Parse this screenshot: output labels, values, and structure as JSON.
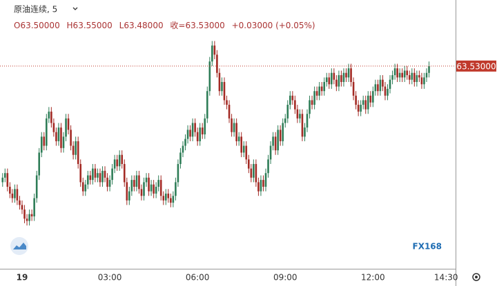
{
  "chart_data": {
    "type": "candlestick",
    "title": "原油连续, 5",
    "ohlc_text": [
      "O63.50000",
      "H63.55000",
      "L63.48000",
      "收=63.53000",
      "+0.03000 (+0.05%)"
    ],
    "price_line": {
      "value": 63.53,
      "label": "63.53000"
    },
    "logo": "FX168",
    "up_color": "#2e7d57",
    "down_color": "#a32a24",
    "ylim": [
      62.64,
      63.82
    ],
    "categories": [
      null,
      null,
      null,
      null,
      null,
      null,
      null,
      null,
      "19",
      null,
      null,
      null,
      null,
      null,
      null,
      null,
      null,
      null,
      null,
      null,
      null,
      null,
      null,
      null,
      null,
      null,
      null,
      null,
      null,
      null,
      null,
      null,
      null,
      null,
      null,
      null,
      null,
      null,
      null,
      null,
      null,
      null,
      null,
      null,
      "03:00",
      null,
      null,
      null,
      null,
      null,
      null,
      null,
      null,
      null,
      null,
      null,
      null,
      null,
      null,
      null,
      null,
      null,
      null,
      null,
      null,
      null,
      null,
      null,
      null,
      null,
      null,
      null,
      null,
      null,
      null,
      null,
      null,
      null,
      null,
      null,
      "06:00",
      null,
      null,
      null,
      null,
      null,
      null,
      null,
      null,
      null,
      null,
      null,
      null,
      null,
      null,
      null,
      null,
      null,
      null,
      null,
      null,
      null,
      null,
      null,
      null,
      null,
      null,
      null,
      null,
      null,
      null,
      null,
      null,
      null,
      null,
      null,
      "09:00",
      null,
      null,
      null,
      null,
      null,
      null,
      null,
      null,
      null,
      null,
      null,
      null,
      null,
      null,
      null,
      null,
      null,
      null,
      null,
      null,
      null,
      null,
      null,
      null,
      null,
      null,
      null,
      null,
      null,
      null,
      null,
      null,
      null,
      null,
      null,
      "12:00",
      null,
      null,
      null,
      null,
      null,
      null,
      null,
      null,
      null,
      null,
      null,
      null,
      null,
      null,
      null,
      null,
      null,
      null,
      null,
      null,
      null,
      null,
      null,
      null,
      null,
      null,
      null,
      null,
      null,
      "14:30"
    ],
    "open": [
      63.02,
      63.04,
      63.06,
      63.0,
      62.97,
      62.95,
      62.99,
      62.94,
      62.92,
      62.9,
      62.86,
      62.85,
      62.88,
      62.87,
      62.95,
      63.05,
      63.15,
      63.22,
      63.18,
      63.3,
      63.33,
      63.28,
      63.24,
      63.2,
      63.26,
      63.17,
      63.22,
      63.3,
      63.25,
      63.18,
      63.14,
      63.2,
      63.1,
      63.02,
      62.98,
      63.01,
      63.05,
      63.03,
      63.08,
      63.04,
      63.06,
      63.02,
      63.07,
      63.04,
      63.0,
      63.03,
      63.08,
      63.12,
      63.09,
      63.14,
      63.1,
      63.02,
      62.94,
      62.98,
      63.03,
      63.0,
      63.05,
      62.99,
      62.96,
      63.02,
      63.04,
      62.98,
      63.01,
      62.97,
      63.0,
      63.03,
      62.96,
      62.94,
      62.97,
      62.95,
      62.93,
      62.96,
      63.02,
      63.1,
      63.15,
      63.18,
      63.21,
      63.25,
      63.22,
      63.28,
      63.24,
      63.2,
      63.26,
      63.23,
      63.3,
      63.42,
      63.55,
      63.62,
      63.58,
      63.5,
      63.42,
      63.46,
      63.38,
      63.36,
      63.3,
      63.24,
      63.28,
      63.2,
      63.22,
      63.15,
      63.18,
      63.12,
      63.08,
      63.04,
      63.1,
      63.02,
      62.98,
      63.03,
      63.0,
      63.06,
      63.12,
      63.18,
      63.22,
      63.16,
      63.25,
      63.2,
      63.28,
      63.3,
      63.36,
      63.4,
      63.38,
      63.34,
      63.3,
      63.32,
      63.22,
      63.26,
      63.32,
      63.38,
      63.36,
      63.42,
      63.4,
      63.44,
      63.42,
      63.46,
      63.48,
      63.45,
      63.5,
      63.47,
      63.44,
      63.49,
      63.46,
      63.5,
      63.48,
      63.52,
      63.46,
      63.4,
      63.36,
      63.33,
      63.36,
      63.38,
      63.34,
      63.4,
      63.37,
      63.42,
      63.45,
      63.42,
      63.47,
      63.44,
      63.4,
      63.43,
      63.47,
      63.49,
      63.52,
      63.48,
      63.5,
      63.48,
      63.51,
      63.49,
      63.47,
      63.5,
      63.46,
      63.49,
      63.48,
      63.45,
      63.48,
      63.5,
      null,
      null,
      null,
      null,
      null,
      null,
      null
    ],
    "high": [
      63.06,
      63.08,
      63.08,
      63.02,
      62.99,
      63.01,
      63.01,
      62.96,
      62.94,
      62.92,
      62.88,
      62.9,
      62.9,
      62.97,
      63.07,
      63.17,
      63.24,
      63.24,
      63.32,
      63.35,
      63.35,
      63.3,
      63.26,
      63.28,
      63.28,
      63.24,
      63.32,
      63.32,
      63.27,
      63.2,
      63.22,
      63.22,
      63.12,
      63.04,
      63.03,
      63.07,
      63.07,
      63.1,
      63.1,
      63.08,
      63.08,
      63.09,
      63.09,
      63.06,
      63.05,
      63.1,
      63.14,
      63.14,
      63.16,
      63.16,
      63.12,
      63.04,
      63.0,
      63.05,
      63.05,
      63.07,
      63.07,
      63.01,
      63.04,
      63.06,
      63.06,
      63.03,
      63.03,
      63.02,
      63.05,
      63.05,
      62.98,
      62.99,
      62.99,
      62.97,
      62.98,
      63.04,
      63.12,
      63.17,
      63.2,
      63.23,
      63.27,
      63.27,
      63.3,
      63.3,
      63.26,
      63.28,
      63.28,
      63.32,
      63.44,
      63.57,
      63.64,
      63.64,
      63.6,
      63.52,
      63.48,
      63.48,
      63.4,
      63.38,
      63.32,
      63.3,
      63.3,
      63.24,
      63.24,
      63.2,
      63.2,
      63.14,
      63.1,
      63.12,
      63.12,
      63.04,
      63.05,
      63.05,
      63.08,
      63.14,
      63.2,
      63.24,
      63.24,
      63.27,
      63.27,
      63.3,
      63.32,
      63.38,
      63.42,
      63.42,
      63.4,
      63.36,
      63.34,
      63.34,
      63.28,
      63.34,
      63.4,
      63.4,
      63.44,
      63.44,
      63.46,
      63.46,
      63.48,
      63.5,
      63.5,
      63.52,
      63.52,
      63.49,
      63.51,
      63.51,
      63.52,
      63.52,
      63.54,
      63.54,
      63.48,
      63.42,
      63.38,
      63.38,
      63.4,
      63.4,
      63.42,
      63.42,
      63.44,
      63.47,
      63.47,
      63.49,
      63.49,
      63.46,
      63.45,
      63.49,
      63.51,
      63.54,
      63.54,
      63.52,
      63.52,
      63.53,
      63.53,
      63.51,
      63.52,
      63.52,
      63.51,
      63.51,
      63.5,
      63.5,
      63.52,
      63.55,
      null,
      null,
      null,
      null,
      null,
      null,
      null
    ],
    "low": [
      63.0,
      63.02,
      62.98,
      62.95,
      62.93,
      62.93,
      62.92,
      62.9,
      62.88,
      62.84,
      62.83,
      62.83,
      62.85,
      62.85,
      62.93,
      63.03,
      63.13,
      63.16,
      63.16,
      63.28,
      63.26,
      63.22,
      63.18,
      63.18,
      63.15,
      63.15,
      63.2,
      63.23,
      63.16,
      63.12,
      63.12,
      63.08,
      63.0,
      62.96,
      62.96,
      62.99,
      63.01,
      63.01,
      63.02,
      63.02,
      63.0,
      63.0,
      63.02,
      62.98,
      62.98,
      63.01,
      63.06,
      63.07,
      63.07,
      63.08,
      63.0,
      62.92,
      62.92,
      62.96,
      62.98,
      62.98,
      62.97,
      62.94,
      62.94,
      63.0,
      62.96,
      62.96,
      62.95,
      62.95,
      62.98,
      62.94,
      62.92,
      62.92,
      62.93,
      62.91,
      62.91,
      62.94,
      63.0,
      63.08,
      63.13,
      63.16,
      63.19,
      63.2,
      63.2,
      63.22,
      63.18,
      63.18,
      63.21,
      63.21,
      63.28,
      63.4,
      63.53,
      63.56,
      63.48,
      63.4,
      63.4,
      63.36,
      63.34,
      63.28,
      63.22,
      63.22,
      63.18,
      63.18,
      63.13,
      63.13,
      63.1,
      63.06,
      63.02,
      63.02,
      63.0,
      62.96,
      62.96,
      62.98,
      62.98,
      63.04,
      63.1,
      63.16,
      63.14,
      63.14,
      63.18,
      63.18,
      63.26,
      63.28,
      63.34,
      63.36,
      63.32,
      63.28,
      63.28,
      63.2,
      63.2,
      63.24,
      63.3,
      63.34,
      63.34,
      63.38,
      63.38,
      63.4,
      63.4,
      63.44,
      63.43,
      63.43,
      63.45,
      63.42,
      63.42,
      63.44,
      63.44,
      63.46,
      63.46,
      63.44,
      63.38,
      63.34,
      63.31,
      63.31,
      63.34,
      63.32,
      63.32,
      63.35,
      63.35,
      63.4,
      63.4,
      63.4,
      63.42,
      63.38,
      63.38,
      63.41,
      63.45,
      63.47,
      63.46,
      63.46,
      63.46,
      63.46,
      63.47,
      63.45,
      63.45,
      63.44,
      63.44,
      63.46,
      63.43,
      63.43,
      63.46,
      63.48,
      null,
      null,
      null,
      null,
      null,
      null,
      null
    ],
    "close": [
      63.04,
      63.06,
      63.0,
      62.97,
      62.95,
      62.99,
      62.94,
      62.92,
      62.9,
      62.86,
      62.85,
      62.88,
      62.87,
      62.95,
      63.05,
      63.15,
      63.22,
      63.18,
      63.3,
      63.33,
      63.28,
      63.24,
      63.2,
      63.26,
      63.17,
      63.22,
      63.3,
      63.25,
      63.18,
      63.14,
      63.2,
      63.1,
      63.02,
      62.98,
      63.01,
      63.05,
      63.03,
      63.08,
      63.04,
      63.06,
      63.02,
      63.07,
      63.04,
      63.0,
      63.03,
      63.08,
      63.12,
      63.09,
      63.14,
      63.1,
      63.02,
      62.94,
      62.98,
      63.03,
      63.0,
      63.05,
      62.99,
      62.96,
      63.02,
      63.04,
      62.98,
      63.01,
      62.97,
      63.0,
      63.03,
      62.96,
      62.94,
      62.97,
      62.95,
      62.93,
      62.96,
      63.02,
      63.1,
      63.15,
      63.18,
      63.21,
      63.25,
      63.22,
      63.28,
      63.24,
      63.2,
      63.26,
      63.23,
      63.3,
      63.42,
      63.55,
      63.62,
      63.58,
      63.5,
      63.42,
      63.46,
      63.38,
      63.36,
      63.3,
      63.24,
      63.28,
      63.2,
      63.22,
      63.15,
      63.18,
      63.12,
      63.08,
      63.04,
      63.1,
      63.02,
      62.98,
      63.03,
      63.0,
      63.06,
      63.12,
      63.18,
      63.22,
      63.16,
      63.25,
      63.2,
      63.28,
      63.3,
      63.36,
      63.4,
      63.38,
      63.34,
      63.3,
      63.32,
      63.22,
      63.26,
      63.32,
      63.38,
      63.36,
      63.42,
      63.4,
      63.44,
      63.42,
      63.46,
      63.48,
      63.45,
      63.5,
      63.47,
      63.44,
      63.49,
      63.46,
      63.5,
      63.48,
      63.52,
      63.46,
      63.4,
      63.36,
      63.33,
      63.36,
      63.38,
      63.34,
      63.4,
      63.37,
      63.42,
      63.45,
      63.42,
      63.47,
      63.44,
      63.4,
      63.43,
      63.47,
      63.49,
      63.52,
      63.48,
      63.5,
      63.48,
      63.51,
      63.49,
      63.47,
      63.5,
      63.46,
      63.49,
      63.48,
      63.45,
      63.48,
      63.5,
      63.53,
      null,
      null,
      null,
      null,
      null,
      null,
      null
    ]
  }
}
